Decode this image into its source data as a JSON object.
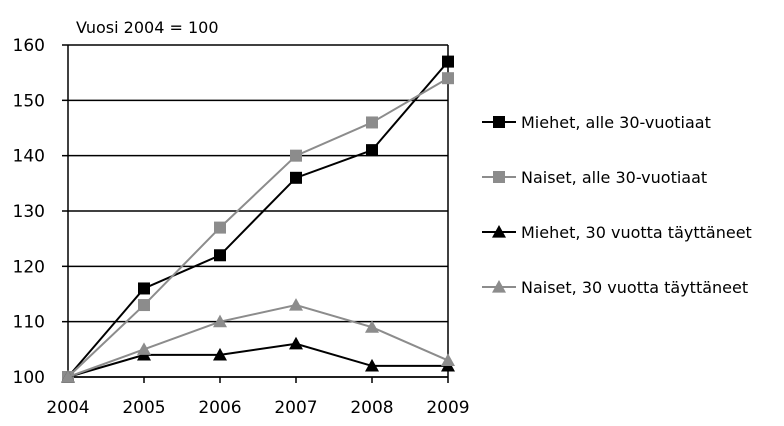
{
  "chart_data": {
    "type": "line",
    "subtitle": "Vuosi 2004 = 100",
    "xlabel": "",
    "ylabel": "",
    "x": [
      "2004",
      "2005",
      "2006",
      "2007",
      "2008",
      "2009"
    ],
    "ylim": [
      100,
      160
    ],
    "yticks": [
      "100",
      "110",
      "120",
      "130",
      "140",
      "150",
      "160"
    ],
    "grid": "horizontal",
    "legend_position": "right",
    "series": [
      {
        "name": "Miehet, alle 30-vuotiaat",
        "values": [
          100,
          116,
          122,
          136,
          141,
          157
        ],
        "color": "#000000",
        "marker": "square"
      },
      {
        "name": "Naiset, alle 30-vuotiaat",
        "values": [
          100,
          113,
          127,
          140,
          146,
          154
        ],
        "color": "#8c8c8c",
        "marker": "square"
      },
      {
        "name": "Miehet, 30 vuotta täyttäneet",
        "values": [
          100,
          104,
          104,
          106,
          102,
          102
        ],
        "color": "#000000",
        "marker": "triangle"
      },
      {
        "name": "Naiset, 30 vuotta täyttäneet",
        "values": [
          100,
          105,
          110,
          113,
          109,
          103
        ],
        "color": "#8c8c8c",
        "marker": "triangle"
      }
    ]
  }
}
